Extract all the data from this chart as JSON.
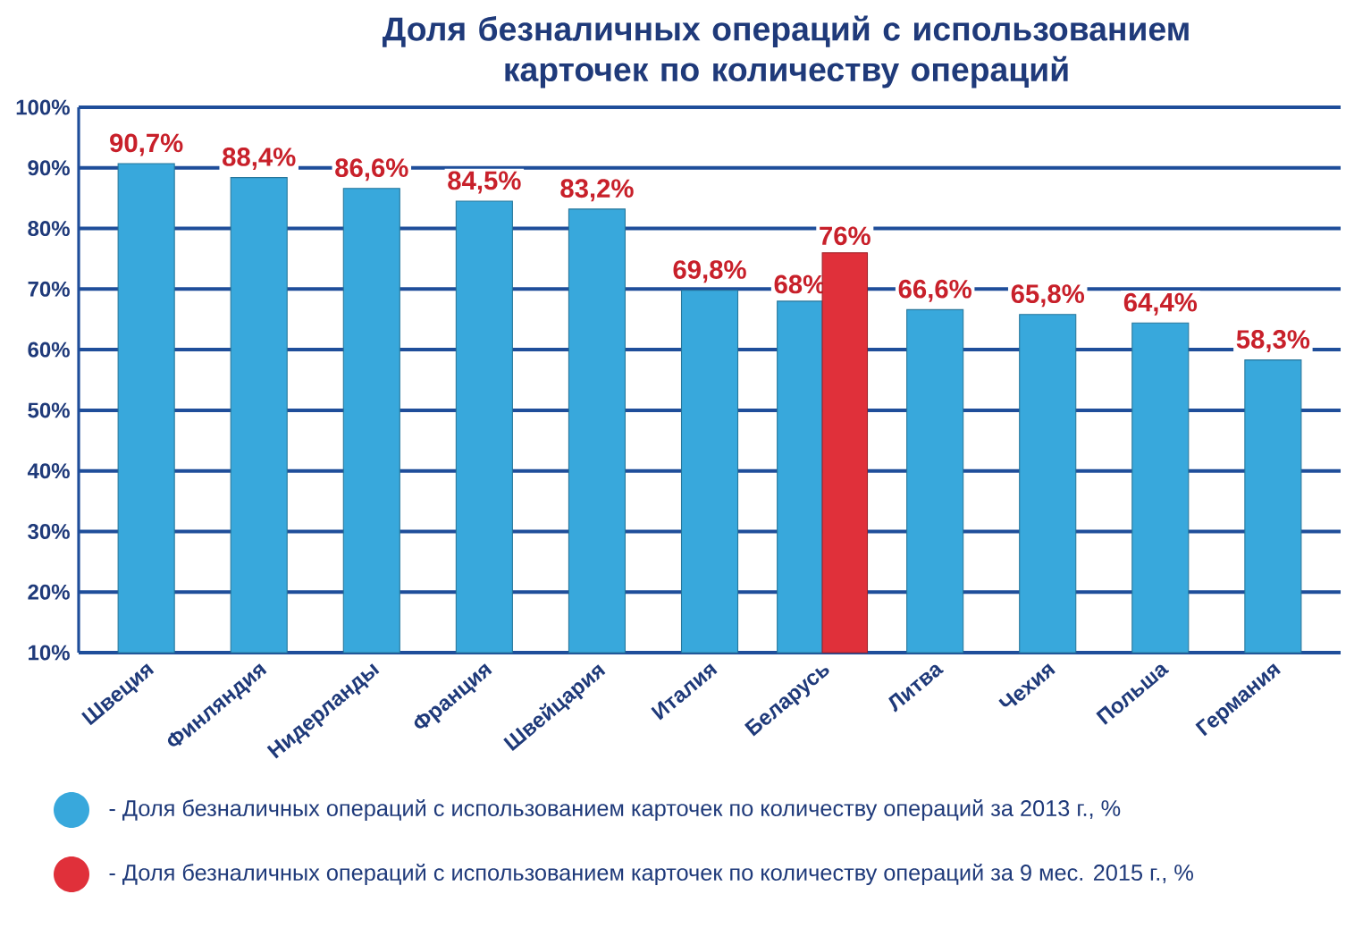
{
  "chart_data": {
    "type": "bar",
    "title": "Доля безналичных операций с использованием карточек по количеству операций",
    "categories": [
      "Швеция",
      "Финляндия",
      "Нидерланды",
      "Франция",
      "Швейцария",
      "Италия",
      "Беларусь",
      "Литва",
      "Чехия",
      "Польша",
      "Германия"
    ],
    "series": [
      {
        "name": "- Доля безналичных операций с использованием карточек по количеству операций за 2013 г., %",
        "color": "#38a8dc",
        "values": [
          90.7,
          88.4,
          86.6,
          84.5,
          83.2,
          69.8,
          68,
          66.6,
          65.8,
          64.4,
          58.3
        ],
        "value_labels": [
          "90,7%",
          "88,4%",
          "86,6%",
          "84,5%",
          "83,2%",
          "69,8%",
          "68%",
          "66,6%",
          "65,8%",
          "64,4%",
          "58,3%"
        ]
      },
      {
        "name": "- Доля безналичных операций с использованием карточек по количеству операций за 9 мес. 2015 г., %",
        "color": "#e0303a",
        "values": [
          null,
          null,
          null,
          null,
          null,
          null,
          76,
          null,
          null,
          null,
          null
        ],
        "value_labels": [
          null,
          null,
          null,
          null,
          null,
          null,
          "76%",
          null,
          null,
          null,
          null
        ]
      }
    ],
    "ylim": [
      10,
      100
    ],
    "yticks": [
      {
        "value": 10,
        "label": "10%"
      },
      {
        "value": 20,
        "label": "20%"
      },
      {
        "value": 30,
        "label": "30%"
      },
      {
        "value": 40,
        "label": "40%"
      },
      {
        "value": 50,
        "label": "50%"
      },
      {
        "value": 60,
        "label": "60%"
      },
      {
        "value": 70,
        "label": "70%"
      },
      {
        "value": 80,
        "label": "80%"
      },
      {
        "value": 90,
        "label": "90%"
      },
      {
        "value": 100,
        "label": "100%"
      }
    ],
    "grid": "y",
    "legend": "bottom"
  }
}
